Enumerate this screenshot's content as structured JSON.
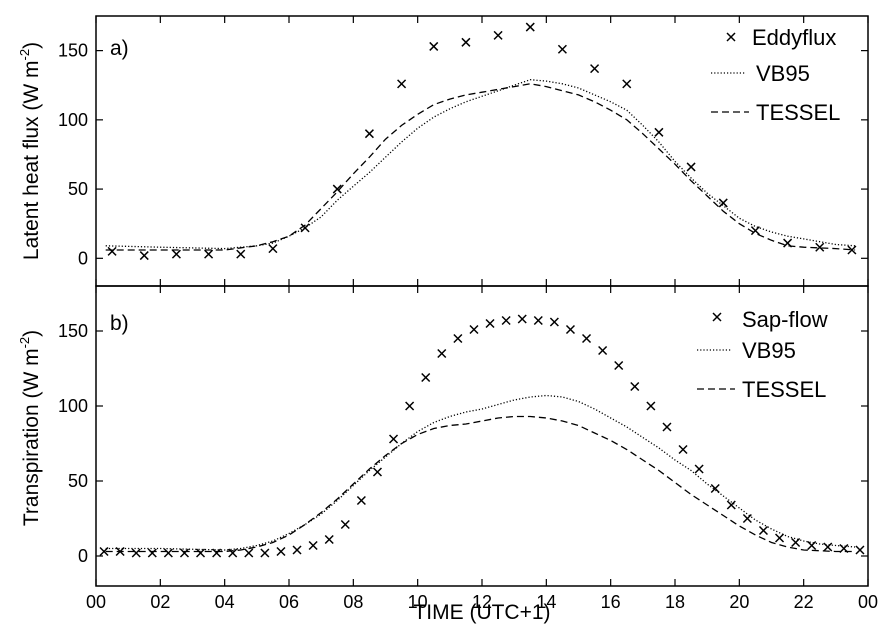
{
  "chart_data": [
    {
      "panel": "a)",
      "type": "line",
      "ylabel": "Latent heat flux (W m",
      "ylabel_sup": "-2",
      "ylabel_close": ")",
      "ylim": [
        -20,
        175
      ],
      "yticks": [
        0,
        50,
        100,
        150
      ],
      "legend_position": "top-right",
      "series": [
        {
          "name": "Eddyflux",
          "style": "x-marker",
          "points": [
            [
              0.5,
              5
            ],
            [
              1.5,
              2
            ],
            [
              2.5,
              3
            ],
            [
              3.5,
              3
            ],
            [
              4.5,
              3
            ],
            [
              5.5,
              7
            ],
            [
              6.5,
              22
            ],
            [
              7.5,
              50
            ],
            [
              8.5,
              90
            ],
            [
              9.5,
              126
            ],
            [
              10.5,
              153
            ],
            [
              11.5,
              156
            ],
            [
              12.5,
              161
            ],
            [
              13.5,
              167
            ],
            [
              14.5,
              151
            ],
            [
              15.5,
              137
            ],
            [
              16.5,
              126
            ],
            [
              17.5,
              91
            ],
            [
              18.5,
              66
            ],
            [
              19.5,
              40
            ],
            [
              20.5,
              20
            ],
            [
              21.5,
              11
            ],
            [
              22.5,
              8
            ],
            [
              23.5,
              6
            ]
          ]
        },
        {
          "name": "VB95",
          "style": "dotted",
          "points": [
            [
              0.3,
              9
            ],
            [
              2,
              8
            ],
            [
              4,
              7
            ],
            [
              5,
              9
            ],
            [
              5.5,
              11
            ],
            [
              6,
              16
            ],
            [
              6.5,
              22
            ],
            [
              7,
              30
            ],
            [
              7.5,
              42
            ],
            [
              8,
              52
            ],
            [
              8.5,
              62
            ],
            [
              9,
              73
            ],
            [
              9.5,
              84
            ],
            [
              10,
              94
            ],
            [
              10.5,
              102
            ],
            [
              11,
              108
            ],
            [
              11.5,
              113
            ],
            [
              12,
              117
            ],
            [
              12.5,
              121
            ],
            [
              13,
              125
            ],
            [
              13.5,
              129
            ],
            [
              14,
              128
            ],
            [
              14.5,
              126
            ],
            [
              15,
              123
            ],
            [
              15.5,
              118
            ],
            [
              16,
              113
            ],
            [
              16.5,
              107
            ],
            [
              17,
              96
            ],
            [
              17.5,
              84
            ],
            [
              18,
              70
            ],
            [
              18.5,
              58
            ],
            [
              19,
              47
            ],
            [
              19.5,
              38
            ],
            [
              20,
              29
            ],
            [
              20.5,
              23
            ],
            [
              21,
              19
            ],
            [
              21.5,
              16
            ],
            [
              22,
              14
            ],
            [
              22.5,
              12
            ],
            [
              23,
              10
            ],
            [
              23.6,
              9
            ]
          ]
        },
        {
          "name": "TESSEL",
          "style": "dashed",
          "points": [
            [
              0.3,
              6
            ],
            [
              2,
              6
            ],
            [
              4,
              6
            ],
            [
              5,
              9
            ],
            [
              5.5,
              12
            ],
            [
              6,
              16
            ],
            [
              6.5,
              24
            ],
            [
              7,
              36
            ],
            [
              7.5,
              48
            ],
            [
              8,
              61
            ],
            [
              8.5,
              73
            ],
            [
              9,
              86
            ],
            [
              9.5,
              96
            ],
            [
              10,
              104
            ],
            [
              10.5,
              111
            ],
            [
              11,
              115
            ],
            [
              11.5,
              118
            ],
            [
              12,
              120
            ],
            [
              12.5,
              122
            ],
            [
              13,
              124
            ],
            [
              13.5,
              126
            ],
            [
              14,
              124
            ],
            [
              14.5,
              121
            ],
            [
              15,
              118
            ],
            [
              15.5,
              113
            ],
            [
              16,
              107
            ],
            [
              16.5,
              100
            ],
            [
              17,
              90
            ],
            [
              17.5,
              79
            ],
            [
              18,
              68
            ],
            [
              18.5,
              56
            ],
            [
              19,
              45
            ],
            [
              19.5,
              34
            ],
            [
              20,
              25
            ],
            [
              20.5,
              18
            ],
            [
              21,
              13
            ],
            [
              21.5,
              9
            ],
            [
              22,
              8
            ],
            [
              23,
              7
            ],
            [
              23.6,
              6
            ]
          ]
        }
      ]
    },
    {
      "panel": "b)",
      "type": "line",
      "xlabel": "TIME (UTC+1)",
      "ylabel": "Transpiration (W m",
      "ylabel_sup": "-2",
      "ylabel_close": ")",
      "xlim": [
        0,
        24
      ],
      "ylim": [
        -20,
        180
      ],
      "yticks": [
        0,
        50,
        100,
        150
      ],
      "xticks": [
        "00",
        "02",
        "04",
        "06",
        "08",
        "10",
        "12",
        "14",
        "16",
        "18",
        "20",
        "22",
        "00"
      ],
      "legend_position": "top-right",
      "series": [
        {
          "name": "Sap-flow",
          "style": "x-marker",
          "points": [
            [
              0.25,
              3
            ],
            [
              0.75,
              3
            ],
            [
              1.25,
              2
            ],
            [
              1.75,
              2
            ],
            [
              2.25,
              2
            ],
            [
              2.75,
              2
            ],
            [
              3.25,
              2
            ],
            [
              3.75,
              2
            ],
            [
              4.25,
              2
            ],
            [
              4.75,
              2
            ],
            [
              5.25,
              2
            ],
            [
              5.75,
              3
            ],
            [
              6.25,
              4
            ],
            [
              6.75,
              7
            ],
            [
              7.25,
              11
            ],
            [
              7.75,
              21
            ],
            [
              8.25,
              37
            ],
            [
              8.75,
              56
            ],
            [
              9.25,
              78
            ],
            [
              9.75,
              100
            ],
            [
              10.25,
              119
            ],
            [
              10.75,
              135
            ],
            [
              11.25,
              145
            ],
            [
              11.75,
              151
            ],
            [
              12.25,
              155
            ],
            [
              12.75,
              157
            ],
            [
              13.25,
              158
            ],
            [
              13.75,
              157
            ],
            [
              14.25,
              156
            ],
            [
              14.75,
              151
            ],
            [
              15.25,
              145
            ],
            [
              15.75,
              137
            ],
            [
              16.25,
              127
            ],
            [
              16.75,
              113
            ],
            [
              17.25,
              100
            ],
            [
              17.75,
              86
            ],
            [
              18.25,
              71
            ],
            [
              18.75,
              58
            ],
            [
              19.25,
              45
            ],
            [
              19.75,
              34
            ],
            [
              20.25,
              25
            ],
            [
              20.75,
              17
            ],
            [
              21.25,
              12
            ],
            [
              21.75,
              9
            ],
            [
              22.25,
              7
            ],
            [
              22.75,
              6
            ],
            [
              23.25,
              5
            ],
            [
              23.75,
              4
            ]
          ]
        },
        {
          "name": "VB95",
          "style": "dotted",
          "points": [
            [
              0.3,
              5
            ],
            [
              2,
              5
            ],
            [
              4,
              4
            ],
            [
              4.5,
              5
            ],
            [
              5,
              7
            ],
            [
              5.5,
              10
            ],
            [
              6,
              15
            ],
            [
              6.5,
              21
            ],
            [
              7,
              28
            ],
            [
              7.5,
              37
            ],
            [
              8,
              47
            ],
            [
              8.5,
              57
            ],
            [
              9,
              66
            ],
            [
              9.5,
              75
            ],
            [
              10,
              83
            ],
            [
              10.5,
              89
            ],
            [
              11,
              93
            ],
            [
              11.5,
              96
            ],
            [
              12,
              98
            ],
            [
              12.5,
              101
            ],
            [
              13,
              104
            ],
            [
              13.5,
              106
            ],
            [
              14,
              107
            ],
            [
              14.5,
              106
            ],
            [
              15,
              103
            ],
            [
              15.5,
              98
            ],
            [
              16,
              92
            ],
            [
              16.5,
              86
            ],
            [
              17,
              79
            ],
            [
              17.5,
              72
            ],
            [
              18,
              64
            ],
            [
              18.5,
              57
            ],
            [
              19,
              48
            ],
            [
              19.5,
              40
            ],
            [
              20,
              32
            ],
            [
              20.5,
              24
            ],
            [
              21,
              18
            ],
            [
              21.5,
              13
            ],
            [
              22,
              10
            ],
            [
              22.5,
              8
            ],
            [
              23,
              7
            ],
            [
              23.6,
              6
            ]
          ]
        },
        {
          "name": "TESSEL",
          "style": "dashed",
          "points": [
            [
              0.3,
              3
            ],
            [
              2,
              3
            ],
            [
              4,
              3
            ],
            [
              4.5,
              4
            ],
            [
              5,
              6
            ],
            [
              5.5,
              9
            ],
            [
              6,
              14
            ],
            [
              6.5,
              21
            ],
            [
              7,
              29
            ],
            [
              7.5,
              38
            ],
            [
              8,
              48
            ],
            [
              8.5,
              58
            ],
            [
              9,
              67
            ],
            [
              9.5,
              75
            ],
            [
              10,
              81
            ],
            [
              10.5,
              85
            ],
            [
              11,
              87
            ],
            [
              11.5,
              88
            ],
            [
              12,
              90
            ],
            [
              12.5,
              92
            ],
            [
              13,
              93
            ],
            [
              13.5,
              93
            ],
            [
              14,
              92
            ],
            [
              14.5,
              90
            ],
            [
              15,
              87
            ],
            [
              15.5,
              82
            ],
            [
              16,
              77
            ],
            [
              16.5,
              71
            ],
            [
              17,
              64
            ],
            [
              17.5,
              57
            ],
            [
              18,
              49
            ],
            [
              18.5,
              41
            ],
            [
              19,
              34
            ],
            [
              19.5,
              27
            ],
            [
              20,
              20
            ],
            [
              20.5,
              14
            ],
            [
              21,
              9
            ],
            [
              21.5,
              6
            ],
            [
              22,
              4
            ],
            [
              23,
              3
            ],
            [
              23.6,
              3
            ]
          ]
        }
      ]
    }
  ]
}
